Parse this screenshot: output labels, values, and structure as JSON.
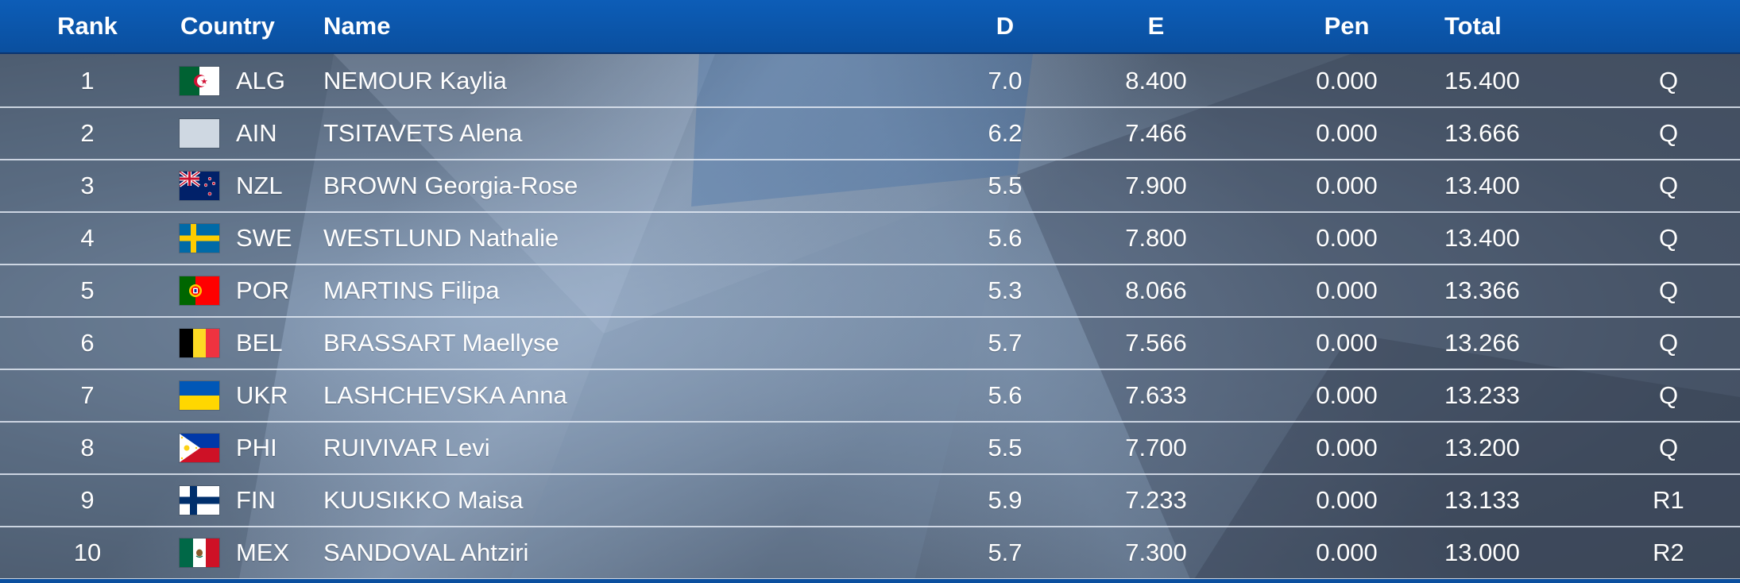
{
  "header": {
    "rank": "Rank",
    "country": "Country",
    "name": "Name",
    "d": "D",
    "e": "E",
    "pen": "Pen",
    "total": "Total"
  },
  "rows": [
    {
      "rank": "1",
      "code": "ALG",
      "flag": "algeria-flag-icon",
      "name": "NEMOUR Kaylia",
      "d": "7.0",
      "e": "8.400",
      "pen": "0.000",
      "total": "15.400",
      "q": "Q"
    },
    {
      "rank": "2",
      "code": "AIN",
      "flag": "neutral-flag-icon",
      "name": "TSITAVETS Alena",
      "d": "6.2",
      "e": "7.466",
      "pen": "0.000",
      "total": "13.666",
      "q": "Q"
    },
    {
      "rank": "3",
      "code": "NZL",
      "flag": "new-zealand-flag-icon",
      "name": "BROWN Georgia-Rose",
      "d": "5.5",
      "e": "7.900",
      "pen": "0.000",
      "total": "13.400",
      "q": "Q"
    },
    {
      "rank": "4",
      "code": "SWE",
      "flag": "sweden-flag-icon",
      "name": "WESTLUND Nathalie",
      "d": "5.6",
      "e": "7.800",
      "pen": "0.000",
      "total": "13.400",
      "q": "Q"
    },
    {
      "rank": "5",
      "code": "POR",
      "flag": "portugal-flag-icon",
      "name": "MARTINS Filipa",
      "d": "5.3",
      "e": "8.066",
      "pen": "0.000",
      "total": "13.366",
      "q": "Q"
    },
    {
      "rank": "6",
      "code": "BEL",
      "flag": "belgium-flag-icon",
      "name": "BRASSART Maellyse",
      "d": "5.7",
      "e": "7.566",
      "pen": "0.000",
      "total": "13.266",
      "q": "Q"
    },
    {
      "rank": "7",
      "code": "UKR",
      "flag": "ukraine-flag-icon",
      "name": "LASHCHEVSKA Anna",
      "d": "5.6",
      "e": "7.633",
      "pen": "0.000",
      "total": "13.233",
      "q": "Q"
    },
    {
      "rank": "8",
      "code": "PHI",
      "flag": "philippines-flag-icon",
      "name": "RUIVIVAR Levi",
      "d": "5.5",
      "e": "7.700",
      "pen": "0.000",
      "total": "13.200",
      "q": "Q"
    },
    {
      "rank": "9",
      "code": "FIN",
      "flag": "finland-flag-icon",
      "name": "KUUSIKKO Maisa",
      "d": "5.9",
      "e": "7.233",
      "pen": "0.000",
      "total": "13.133",
      "q": "R1"
    },
    {
      "rank": "10",
      "code": "MEX",
      "flag": "mexico-flag-icon",
      "name": "SANDOVAL Ahtziri",
      "d": "5.7",
      "e": "7.300",
      "pen": "0.000",
      "total": "13.000",
      "q": "R2"
    }
  ],
  "colors": {
    "header_bg": "#0a4f9f",
    "row_divider": "#e1e8f2",
    "text": "#ffffff"
  }
}
